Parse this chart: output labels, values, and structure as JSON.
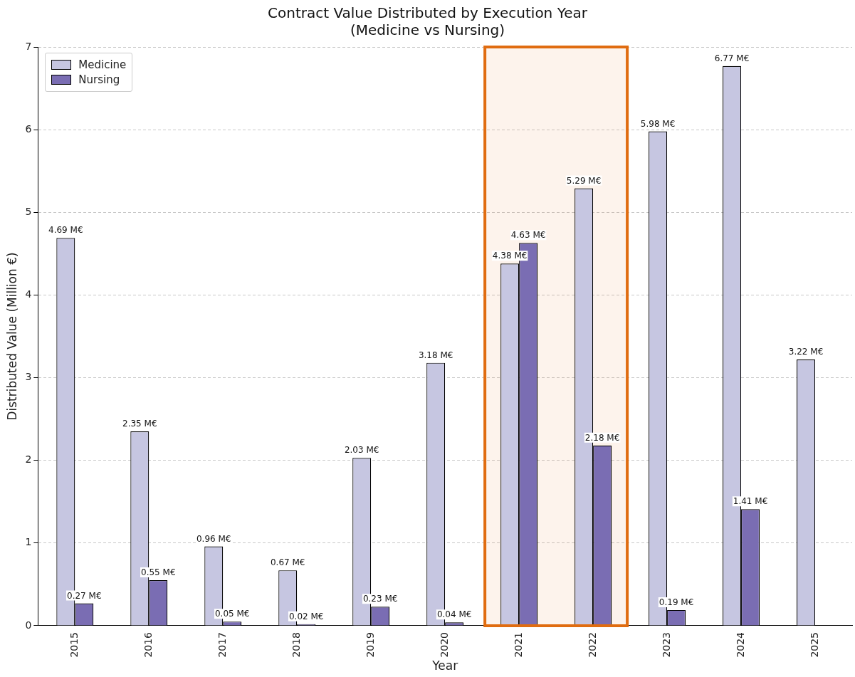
{
  "chart_data": {
    "type": "bar",
    "title": "Contract Value Distributed by Execution Year\n(Medicine vs Nursing)",
    "xlabel": "Year",
    "ylabel": "Distributed Value (Million €)",
    "categories": [
      "2015",
      "2016",
      "2017",
      "2018",
      "2019",
      "2020",
      "2021",
      "2022",
      "2023",
      "2024",
      "2025"
    ],
    "series": [
      {
        "name": "Medicine",
        "color": "#c6c6e1",
        "values": [
          4.69,
          2.35,
          0.96,
          0.67,
          2.03,
          3.18,
          4.38,
          5.29,
          5.98,
          6.77,
          3.22
        ],
        "value_labels": [
          "4.69 M€",
          "2.35 M€",
          "0.96 M€",
          "0.67 M€",
          "2.03 M€",
          "3.18 M€",
          "4.38 M€",
          "5.29 M€",
          "5.98 M€",
          "6.77 M€",
          "3.22 M€"
        ]
      },
      {
        "name": "Nursing",
        "color": "#7a6db3",
        "values": [
          0.27,
          0.55,
          0.05,
          0.02,
          0.23,
          0.04,
          4.63,
          2.18,
          0.19,
          1.41,
          null
        ],
        "value_labels": [
          "0.27 M€",
          "0.55 M€",
          "0.05 M€",
          "0.02 M€",
          "0.23 M€",
          "0.04 M€",
          "4.63 M€",
          "2.18 M€",
          "0.19 M€",
          "1.41 M€",
          null
        ]
      }
    ],
    "ylim": [
      0,
      7
    ],
    "yticks": [
      0,
      1,
      2,
      3,
      4,
      5,
      6,
      7
    ],
    "grid": "y",
    "legend": "top left",
    "bands": [
      {
        "axis": "x",
        "from": "2021",
        "to": "2022",
        "color": "#e06c10"
      }
    ]
  }
}
